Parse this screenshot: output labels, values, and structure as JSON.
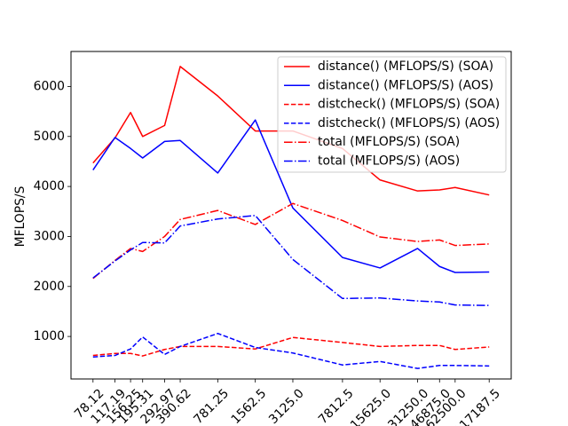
{
  "chart_data": {
    "type": "line",
    "title": "",
    "xlabel": "",
    "ylabel": "MFLOPS/S",
    "x_scale": "log",
    "categories": [
      "78.12",
      "117.19",
      "156.25",
      "195.31",
      "292.97",
      "390.62",
      "781.25",
      "1562.5",
      "3125.0",
      "7812.5",
      "15625.0",
      "31250.0",
      "46875.0",
      "62500.0",
      "117187.5"
    ],
    "x_values": [
      78.12,
      117.19,
      156.25,
      195.31,
      292.97,
      390.62,
      781.25,
      1562.5,
      3125.0,
      7812.5,
      15625.0,
      31250.0,
      46875.0,
      62500.0,
      117187.5
    ],
    "yticks": [
      1000,
      2000,
      3000,
      4000,
      5000,
      6000
    ],
    "ylim": [
      150,
      6700
    ],
    "grid": false,
    "legend_position": "top-right",
    "series": [
      {
        "name": "distance() (MFLOPS/S) (SOA)",
        "color": "#ff0000",
        "linestyle": "solid",
        "values": [
          4470,
          4970,
          5480,
          5000,
          5220,
          6400,
          5810,
          5110,
          5110,
          4760,
          4130,
          3910,
          3930,
          3980,
          3830
        ]
      },
      {
        "name": "distance() (MFLOPS/S) (AOS)",
        "color": "#0000ff",
        "linestyle": "solid",
        "values": [
          4330,
          4980,
          4760,
          4570,
          4900,
          4920,
          4270,
          5330,
          3570,
          2580,
          2370,
          2760,
          2400,
          2280,
          2290
        ]
      },
      {
        "name": "distcheck() (MFLOPS/S) (SOA)",
        "color": "#ff0000",
        "linestyle": "dashed",
        "values": [
          620,
          660,
          660,
          610,
          740,
          800,
          800,
          750,
          980,
          880,
          800,
          820,
          820,
          740,
          790
        ]
      },
      {
        "name": "distcheck() (MFLOPS/S) (AOS)",
        "color": "#0000ff",
        "linestyle": "dashed",
        "values": [
          590,
          620,
          750,
          990,
          640,
          800,
          1060,
          780,
          670,
          430,
          500,
          360,
          420,
          420,
          410
        ]
      },
      {
        "name": "total (MFLOPS/S) (SOA)",
        "color": "#ff0000",
        "linestyle": "dashdot",
        "values": [
          2160,
          2520,
          2760,
          2700,
          3000,
          3340,
          3520,
          3240,
          3660,
          3320,
          2990,
          2900,
          2930,
          2820,
          2850
        ]
      },
      {
        "name": "total (MFLOPS/S) (AOS)",
        "color": "#0000ff",
        "linestyle": "dashdot",
        "values": [
          2170,
          2510,
          2730,
          2880,
          2870,
          3210,
          3350,
          3420,
          2540,
          1760,
          1770,
          1710,
          1690,
          1630,
          1620
        ]
      }
    ]
  }
}
